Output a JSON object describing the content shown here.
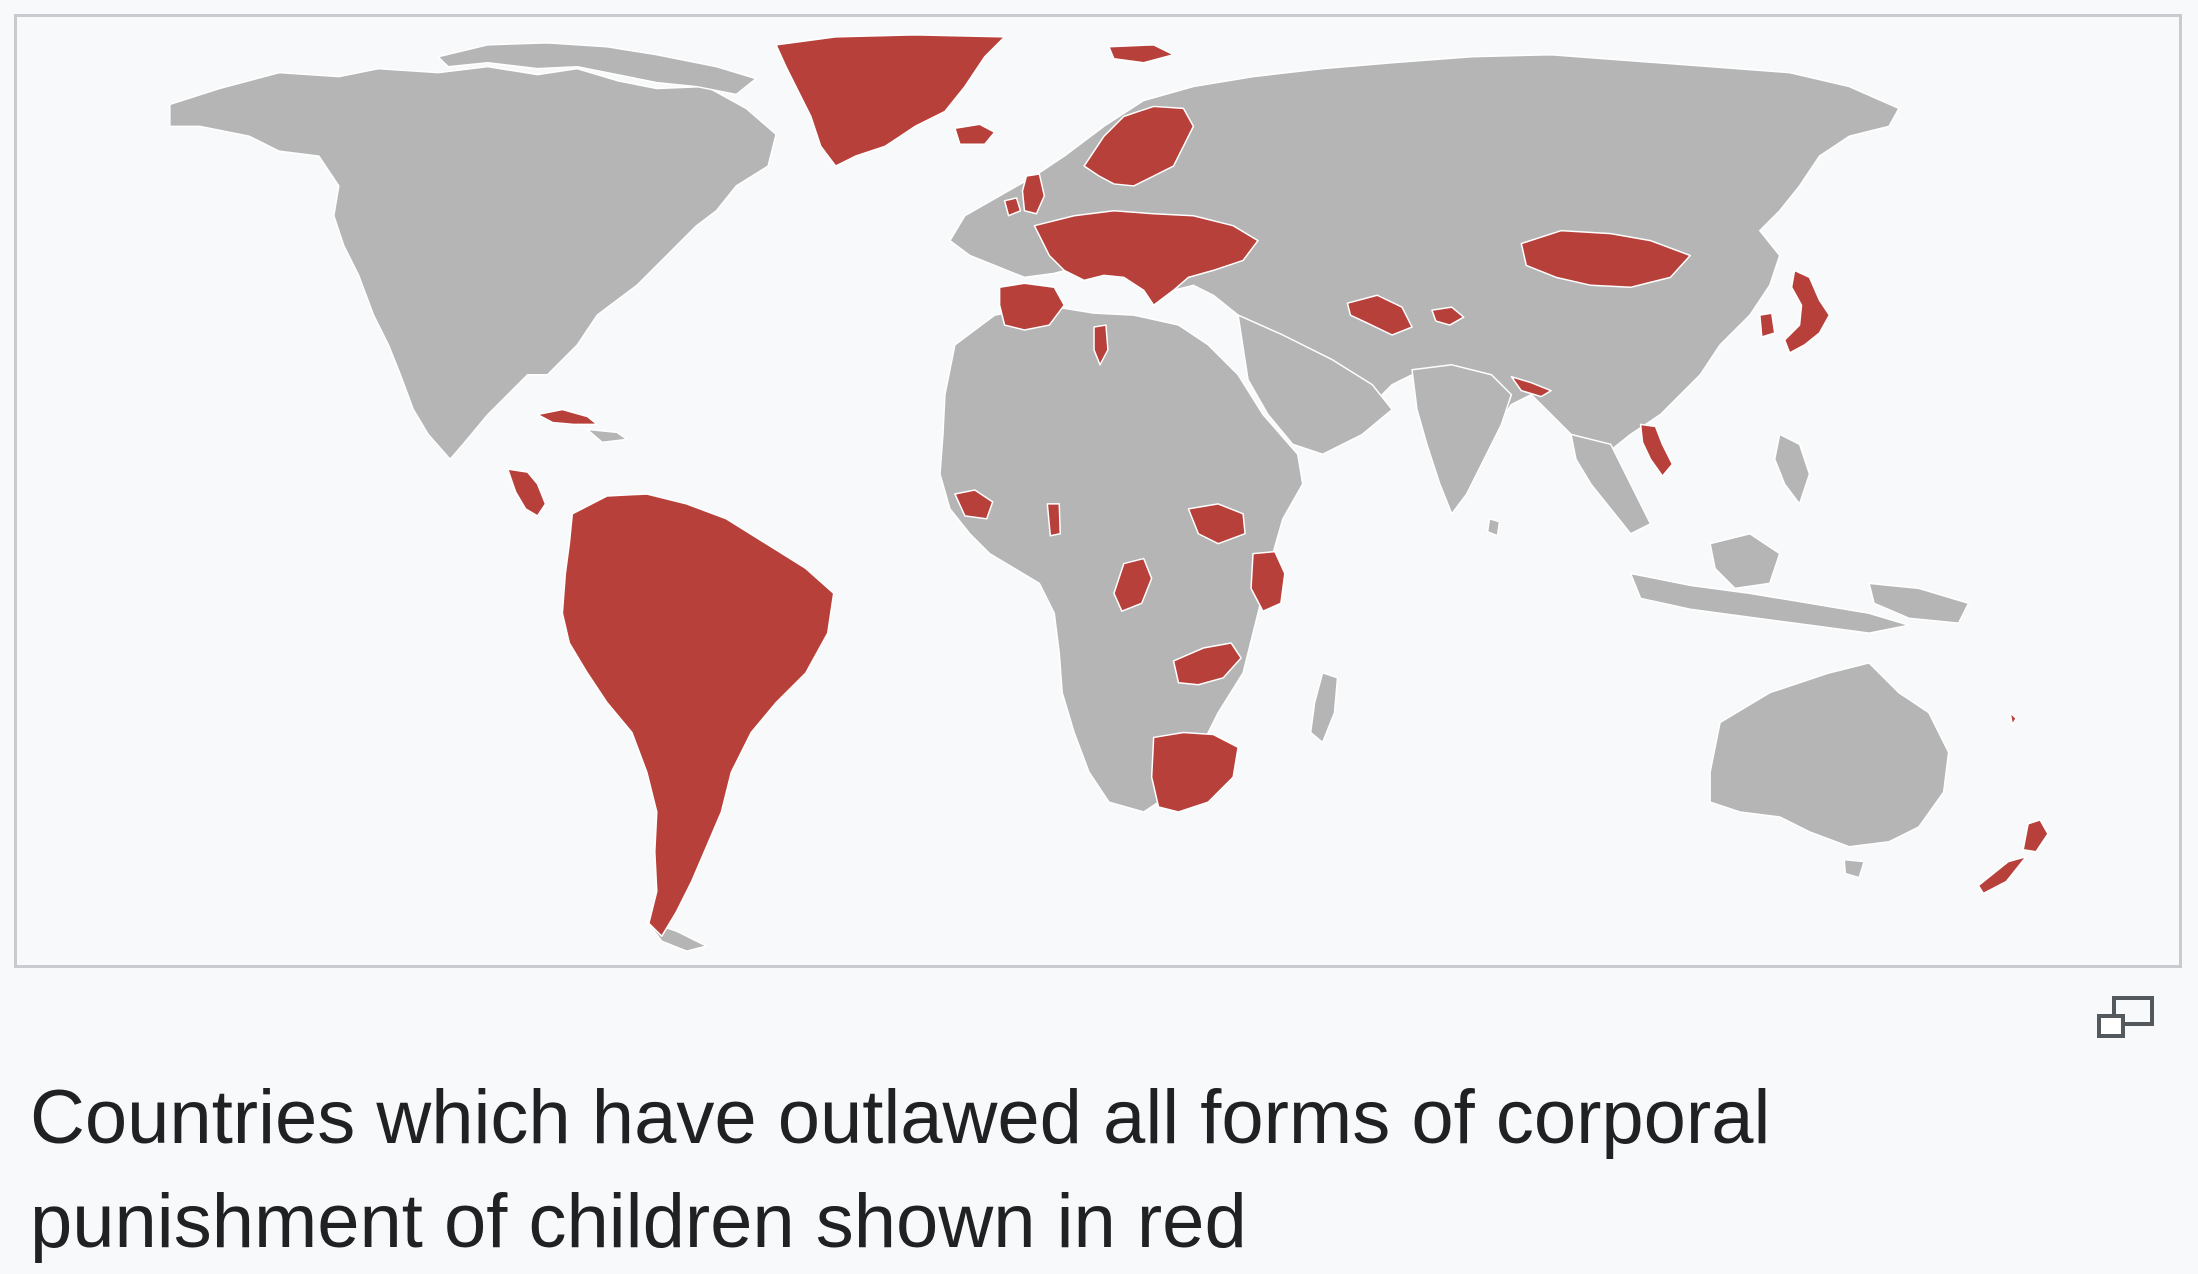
{
  "figure": {
    "caption": "Countries which have outlawed all forms of corporal punishment of children shown in red",
    "magnify_icon": "magnify-clip-icon",
    "colors": {
      "outlawed": "#b8403b",
      "not_outlawed": "#b5b5b5",
      "ocean": "#f8f9fa",
      "frame_border": "#c8ccd1"
    },
    "highlighted_regions": [
      "Greenland",
      "Iceland",
      "Scandinavia",
      "Ireland",
      "United Kingdom",
      "Western Europe",
      "Iberian Peninsula",
      "Central Europe",
      "Eastern Europe",
      "Tunisia",
      "Mongolia",
      "Turkmenistan",
      "Tajikistan",
      "Nepal",
      "Japan",
      "South Korea",
      "Laos",
      "Cuba",
      "Central America",
      "South America",
      "Guinea",
      "Togo / Benin",
      "South Sudan",
      "Kenya",
      "Republic of the Congo",
      "Zambia",
      "South Africa",
      "New Zealand"
    ]
  }
}
